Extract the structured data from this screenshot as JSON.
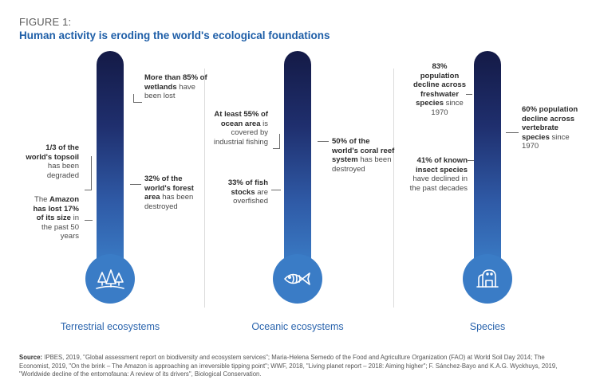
{
  "figure_label": "FIGURE 1:",
  "title": "Human activity is eroding the world's ecological foundations",
  "panels": {
    "terrestrial": {
      "label": "Terrestrial ecosystems",
      "icon": "trees-icon",
      "annotations": {
        "wetlands_bold": "More than 85% of wetlands",
        "wetlands_rest": "have been lost",
        "topsoil_bold": "1/3 of the world's topsoil",
        "topsoil_rest": "has been degraded",
        "forest_bold": "32% of the world's forest area",
        "forest_rest": "has been destroyed",
        "amazon_pre": "The",
        "amazon_bold1": "Amazon",
        "amazon_mid": "has lost 17% of its size",
        "amazon_rest": "in the past 50 years"
      }
    },
    "oceanic": {
      "label": "Oceanic ecosystems",
      "icon": "fish-icon",
      "annotations": {
        "ocean_bold": "At least 55% of ocean area",
        "ocean_rest": "is covered by industrial fishing",
        "coral_bold": "50% of the world's coral reef system",
        "coral_rest": "has been destroyed",
        "fish_bold": "33% of fish stocks",
        "fish_rest": "are overfished"
      }
    },
    "species": {
      "label": "Species",
      "icon": "gorilla-icon",
      "annotations": {
        "fresh_bold": "83% population decline across freshwater species",
        "fresh_rest": "since 1970",
        "vert_bold": "60% population decline across vertebrate species",
        "vert_rest": "since 1970",
        "insect_bold": "41% of known insect species",
        "insect_rest": "have declined in the past decades"
      }
    }
  },
  "source_label": "Source:",
  "source_text": " IPBES, 2019, \"Global assessment report on biodiversity and ecosystem services\"; Maria-Helena Semedo of the Food and Agriculture Organization (FAO) at World Soil Day 2014; The Economist, 2019, \"On the brink – The Amazon is approaching an irreversible tipping point\"; WWF, 2018, \"Living planet report – 2018: Aiming higher\"; F. Sánchez-Bayo and K.A.G. Wyckhuys, 2019, \"Worldwide decline of the entomofauna: A review of its drivers\", Biological Conservation.",
  "colors": {
    "title": "#1f5fa8",
    "category": "#2a64ad",
    "tube_top": "#141a46",
    "tube_bottom": "#3a7cc6"
  }
}
